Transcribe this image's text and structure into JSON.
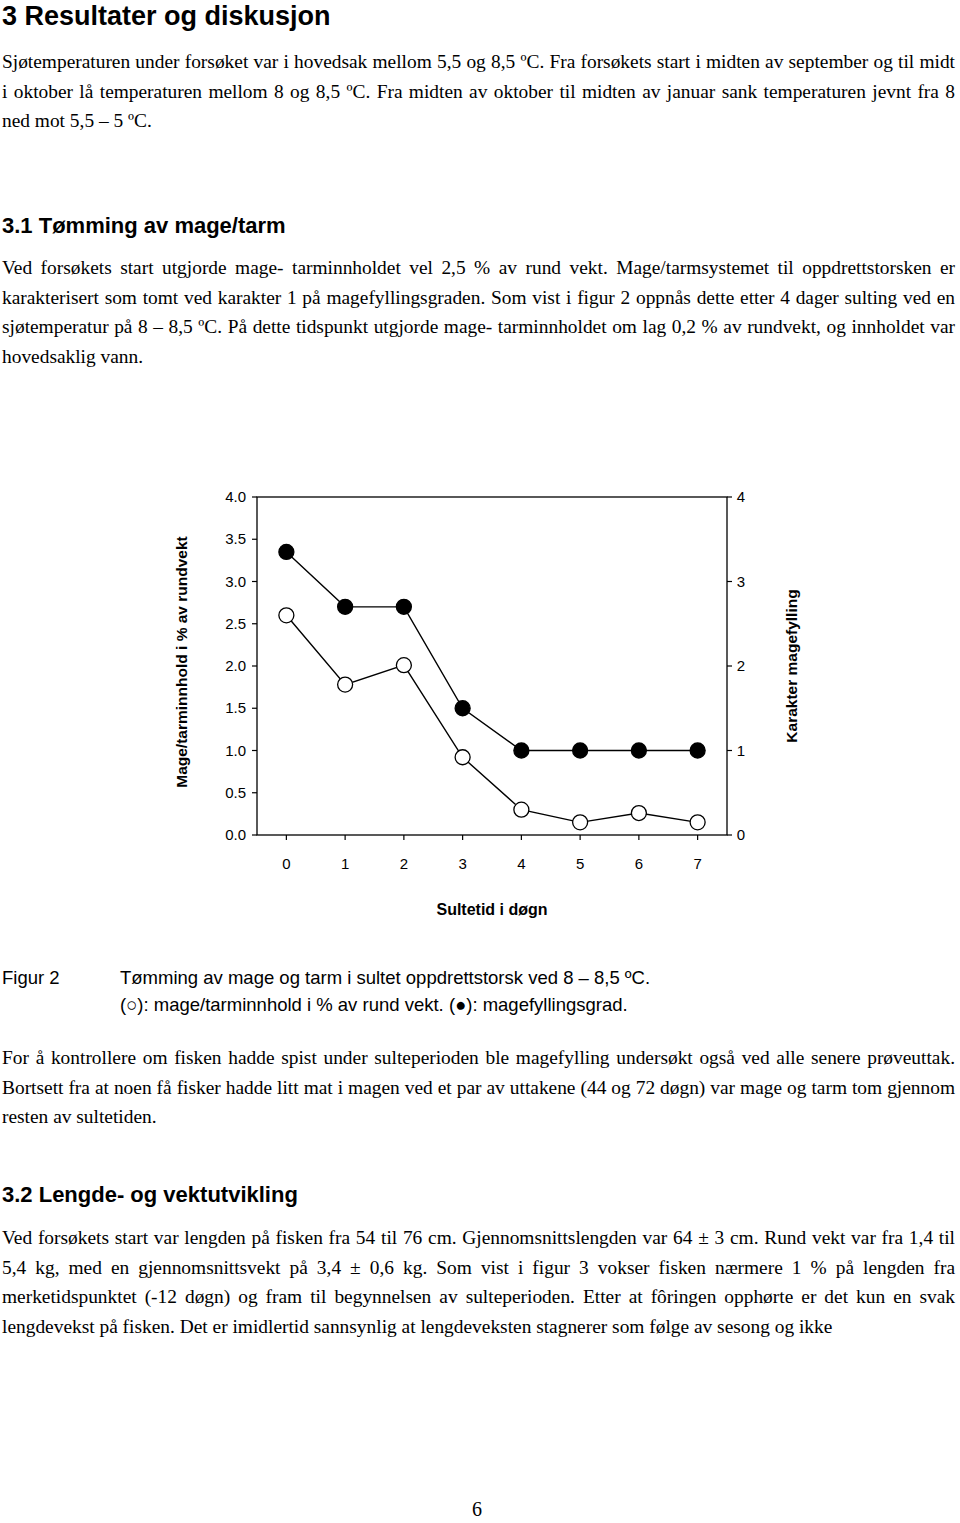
{
  "page": {
    "heading": "3 Resultater og diskusjon",
    "intro": "Sjøtemperaturen under forsøket var i hovedsak mellom 5,5 og 8,5 ºC. Fra forsøkets start i midten av september og til midt i oktober lå temperaturen mellom 8 og 8,5 ºC. Fra midten av oktober til midten av januar sank temperaturen jevnt fra 8 ned mot 5,5 – 5 ºC.",
    "section_1": {
      "heading": "3.1 Tømming av mage/tarm",
      "paragraphs": [
        "Ved forsøkets start utgjorde mage- tarminnholdet vel 2,5 % av rund vekt. Mage/tarmsystemet til oppdrettstorsken er karakterisert som tomt ved karakter 1 på magefyllingsgraden. Som vist i figur 2 oppnås dette etter 4 dager sulting ved en sjøtemperatur på 8 – 8,5 ºC. På dette tidspunkt utgjorde mage- tarminnholdet om lag 0,2 % av rundvekt, og innholdet var hovedsaklig vann."
      ]
    },
    "figure": {
      "label": "Figur 2",
      "caption": [
        "Tømming av mage og tarm i sultet oppdrettstorsk ved 8 – 8,5 ºC.",
        "(○): mage/tarminnhold i % av rund vekt. (●): magefyllingsgrad."
      ]
    },
    "after_figure": "For å kontrollere om fisken hadde spist under sulteperioden ble magefylling undersøkt også ved alle senere prøveuttak. Bortsett fra at noen få fisker hadde litt mat i magen ved et par av uttakene (44 og 72 døgn) var mage og tarm tom gjennom resten av sultetiden.",
    "section_2": {
      "heading": "3.2 Lengde- og vektutvikling",
      "paragraphs": [
        "Ved forsøkets start var lengden på fisken fra 54 til 76 cm.  Gjennomsnittslengden var 64 ± 3 cm. Rund vekt var fra 1,4 til 5,4 kg, med en gjennomsnittsvekt på 3,4 ± 0,6 kg. Som vist i figur 3 vokser fisken nærmere 1 % på lengden fra merketidspunktet (-12 døgn) og fram til begynnelsen av sulteperioden. Etter at fôringen opphørte er det kun en svak lengdevekst på fisken. Det er imidlertid sannsynlig at lengdeveksten stagnerer som følge av sesong og ikke"
      ]
    },
    "page_number": 6
  },
  "chart_data": {
    "type": "line",
    "x_label": "Sultetid i døgn",
    "y_label": "Mage/tarminnhold i % av rundvekt",
    "y2_label": "Karakter magefylling",
    "x": [
      0,
      1,
      2,
      3,
      4,
      5,
      6,
      7
    ],
    "xlim": [
      -0.5,
      7.5
    ],
    "xticks": [
      0,
      1,
      2,
      3,
      4,
      5,
      6,
      7
    ],
    "ylim": [
      0,
      4
    ],
    "yticks": [
      {
        "value": 0,
        "label": "0.0"
      },
      0.5,
      {
        "value": 1,
        "label": "1.0"
      },
      1.5,
      {
        "value": 2,
        "label": "2.0"
      },
      2.5,
      {
        "value": 3,
        "label": "3.0"
      },
      3.5,
      {
        "value": 4,
        "label": "4.0"
      }
    ],
    "y2lim": [
      0,
      4
    ],
    "y2ticks": [
      0,
      1,
      2,
      3,
      4
    ],
    "grid": false,
    "series": [
      {
        "color": "#000000",
        "marker": "open_circle",
        "values": [
          2.6,
          1.78,
          2.01,
          0.92,
          0.3,
          0.15,
          0.26,
          0.15
        ]
      },
      {
        "color": "#000000",
        "marker": "filled_circle",
        "axis": "y2",
        "values": [
          3.35,
          2.7,
          2.7,
          1.5,
          1.0,
          1.0,
          1.0,
          1.0
        ]
      }
    ]
  }
}
